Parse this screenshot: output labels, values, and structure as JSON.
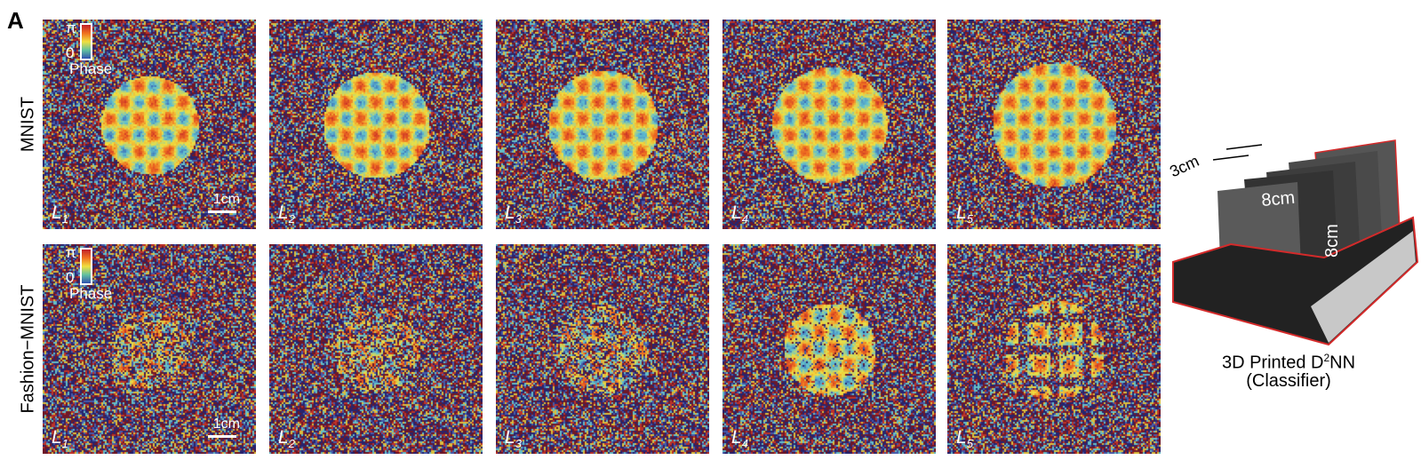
{
  "panel_letter": "A",
  "rows": [
    {
      "label": "MNIST",
      "layers": [
        "L",
        "L",
        "L",
        "L",
        "L"
      ]
    },
    {
      "label": "Fashion−MNIST",
      "layers": [
        "L",
        "L",
        "L",
        "L",
        "L"
      ]
    }
  ],
  "layer_indices": [
    "1",
    "2",
    "3",
    "4",
    "5"
  ],
  "colorbar": {
    "max_label": "π",
    "min_label": "0",
    "title": "Phase",
    "colors": [
      "#c0202a",
      "#f07020",
      "#f0e040",
      "#60c0a0",
      "#3050b0"
    ]
  },
  "scale_bar": "1cm",
  "device": {
    "thickness_label": "3cm",
    "width_label": "8cm",
    "height_label": "8cm",
    "caption_line1": "3D Printed D",
    "caption_sup": "2",
    "caption_line1_end": "NN",
    "caption_line2": "(Classifier)",
    "outline_color": "#d42a2a"
  }
}
